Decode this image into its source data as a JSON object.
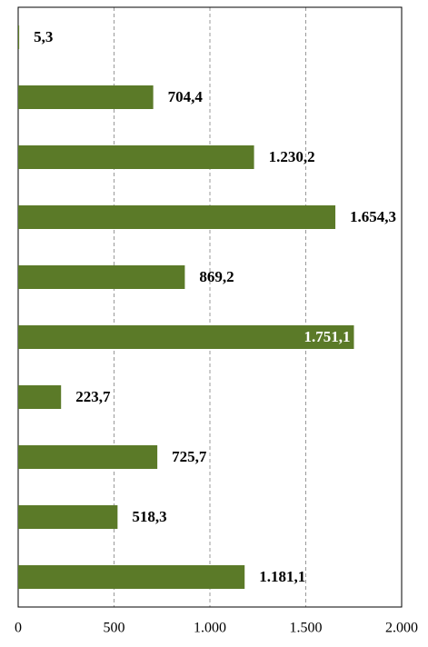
{
  "chart_data": {
    "type": "barh",
    "categories": [
      null,
      null,
      null,
      null,
      null,
      null,
      null,
      null,
      null,
      null
    ],
    "values": [
      5.3,
      704.4,
      1230.2,
      1654.3,
      869.2,
      1751.1,
      223.7,
      725.7,
      518.3,
      1181.1
    ],
    "value_labels": [
      "5,3",
      "704,4",
      "1.230,2",
      "1.654,3",
      "869,2",
      "1.751,1",
      "223,7",
      "725,7",
      "518,3",
      "1.181,1"
    ],
    "color": "#5b7a28",
    "xlim": [
      0,
      2000
    ],
    "xticks": [
      0,
      500,
      {
        "value": 1000,
        "label": "1.000"
      },
      {
        "value": 1500,
        "label": "1.500"
      },
      {
        "value": 2000,
        "label": "2.000"
      }
    ],
    "grid": true
  }
}
